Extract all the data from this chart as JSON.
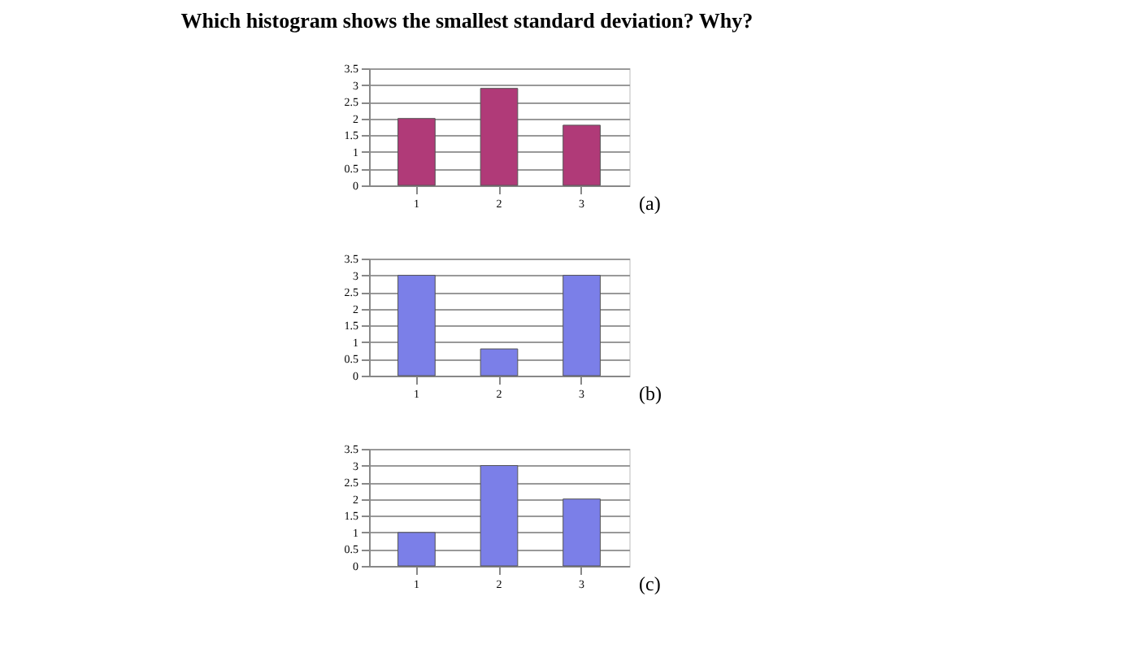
{
  "chart_data": [
    {
      "type": "bar",
      "title": "Which histogram shows the smallest standard deviation? Why?",
      "categories": [
        "1",
        "2",
        "3"
      ],
      "values": [
        2,
        2.9,
        1.8
      ],
      "color": "#b03a78",
      "ylim": [
        0,
        3.5
      ],
      "yticks": [
        0,
        0.5,
        1,
        1.5,
        2,
        2.5,
        3,
        3.5
      ],
      "grid": true,
      "annotations": [
        "(a)"
      ]
    },
    {
      "type": "bar",
      "categories": [
        "1",
        "2",
        "3"
      ],
      "values": [
        3,
        0.8,
        3
      ],
      "color": "#7b7fe8",
      "ylim": [
        0,
        3.5
      ],
      "yticks": [
        0,
        0.5,
        1,
        1.5,
        2,
        2.5,
        3,
        3.5
      ],
      "grid": true,
      "annotations": [
        "(b)"
      ]
    },
    {
      "type": "bar",
      "categories": [
        "1",
        "2",
        "3"
      ],
      "values": [
        1,
        3,
        2
      ],
      "color": "#7b7fe8",
      "ylim": [
        0,
        3.5
      ],
      "yticks": [
        0,
        0.5,
        1,
        1.5,
        2,
        2.5,
        3,
        3.5
      ],
      "grid": true,
      "annotations": [
        "(c)"
      ]
    }
  ]
}
